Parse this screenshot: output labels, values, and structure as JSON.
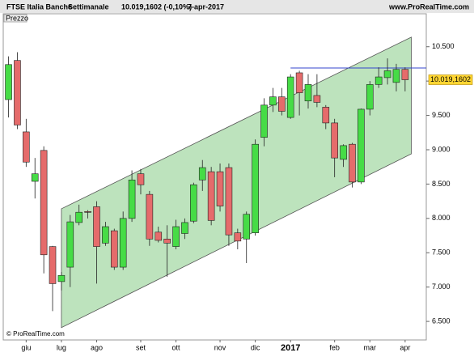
{
  "header": {
    "title": "FTSE Italia Banche",
    "period": "Settimanale",
    "quote": "10.019,1602 (-0,10%)",
    "date": "7-apr-2017",
    "site": "www.ProRealTime.com"
  },
  "chart_data": {
    "type": "candlestick",
    "label": "Prezzo",
    "copyright": "© ProRealTime.com",
    "categories": [
      null,
      null,
      "giu",
      null,
      null,
      null,
      "lug",
      null,
      null,
      null,
      "ago",
      null,
      null,
      null,
      null,
      "set",
      null,
      null,
      null,
      "ott",
      null,
      null,
      null,
      null,
      "nov",
      null,
      null,
      null,
      "dic",
      null,
      null,
      null,
      "2017",
      null,
      null,
      null,
      null,
      "feb",
      null,
      null,
      null,
      "mar",
      null,
      null,
      null,
      "apr"
    ],
    "open": [
      9.73,
      10.3,
      9.26,
      8.54,
      8.99,
      7.59,
      7.08,
      7.29,
      7.94,
      8.1,
      8.17,
      7.64,
      7.82,
      7.29,
      8.0,
      8.65,
      8.35,
      7.8,
      7.7,
      7.59,
      7.78,
      7.96,
      8.56,
      8.68,
      8.68,
      8.74,
      7.79,
      7.7,
      7.79,
      9.18,
      9.65,
      9.77,
      9.47,
      10.12,
      9.71,
      9.79,
      9.62,
      9.39,
      8.86,
      9.08,
      8.53,
      9.59,
      9.95,
      10.05,
      9.98,
      10.17
    ],
    "high": [
      10.36,
      10.42,
      9.45,
      8.88,
      9.05,
      7.6,
      7.22,
      8.05,
      8.2,
      8.12,
      8.25,
      7.95,
      7.85,
      8.1,
      8.7,
      8.72,
      8.4,
      7.88,
      7.9,
      7.98,
      8.0,
      8.52,
      8.85,
      8.75,
      8.8,
      8.8,
      7.85,
      8.1,
      9.15,
      9.75,
      9.9,
      9.9,
      10.1,
      10.15,
      10.1,
      10.1,
      9.65,
      9.45,
      9.08,
      9.1,
      9.6,
      10.0,
      10.2,
      10.33,
      10.25,
      10.2
    ],
    "low": [
      9.47,
      9.3,
      8.75,
      8.29,
      7.2,
      6.65,
      6.95,
      7.0,
      7.9,
      8.0,
      7.05,
      7.6,
      7.25,
      7.25,
      7.95,
      8.35,
      7.6,
      7.65,
      7.15,
      7.55,
      7.7,
      7.93,
      8.4,
      7.9,
      8.1,
      7.6,
      7.55,
      7.35,
      7.75,
      9.05,
      9.55,
      9.5,
      9.45,
      9.5,
      9.6,
      9.62,
      9.3,
      8.6,
      8.75,
      8.45,
      8.5,
      9.5,
      9.9,
      9.95,
      9.85,
      9.85
    ],
    "close": [
      10.24,
      9.36,
      8.82,
      8.65,
      7.47,
      7.05,
      7.17,
      7.95,
      8.09,
      8.09,
      7.59,
      7.88,
      7.29,
      8.0,
      8.56,
      8.49,
      7.7,
      7.68,
      7.64,
      7.88,
      7.94,
      8.49,
      8.74,
      7.97,
      8.18,
      7.76,
      7.67,
      8.06,
      9.08,
      9.65,
      9.77,
      9.56,
      10.06,
      9.83,
      9.95,
      9.69,
      9.39,
      8.88,
      9.06,
      8.53,
      9.59,
      9.95,
      10.06,
      10.15,
      10.17,
      10.019
    ],
    "up_color": "#46dc46",
    "down_color": "#e56b6b",
    "xlim": [
      -0.6,
      47.4
    ],
    "ylim": [
      6.23,
      10.98
    ],
    "yticks": [
      {
        "value": 6.5,
        "label": "6.500"
      },
      {
        "value": 7,
        "label": "7.000"
      },
      {
        "value": 7.5,
        "label": "7.500"
      },
      {
        "value": 8,
        "label": "8.000"
      },
      {
        "value": 8.5,
        "label": "8.500"
      },
      {
        "value": 9,
        "label": "9.000"
      },
      {
        "value": 9.5,
        "label": "9.500"
      },
      {
        "value": 10,
        "label": "10.000"
      },
      {
        "value": 10.5,
        "label": "10.500"
      }
    ],
    "last_price": {
      "value": 10.0191602,
      "label": "10.019,1602"
    },
    "channel": {
      "x": [
        6,
        45.7
      ],
      "upper": [
        8.14,
        10.64
      ],
      "lower": [
        6.41,
        8.94
      ],
      "color": "#bde3bd"
    },
    "level": {
      "x": 32,
      "value": 10.19,
      "color": "#3344cc"
    }
  }
}
